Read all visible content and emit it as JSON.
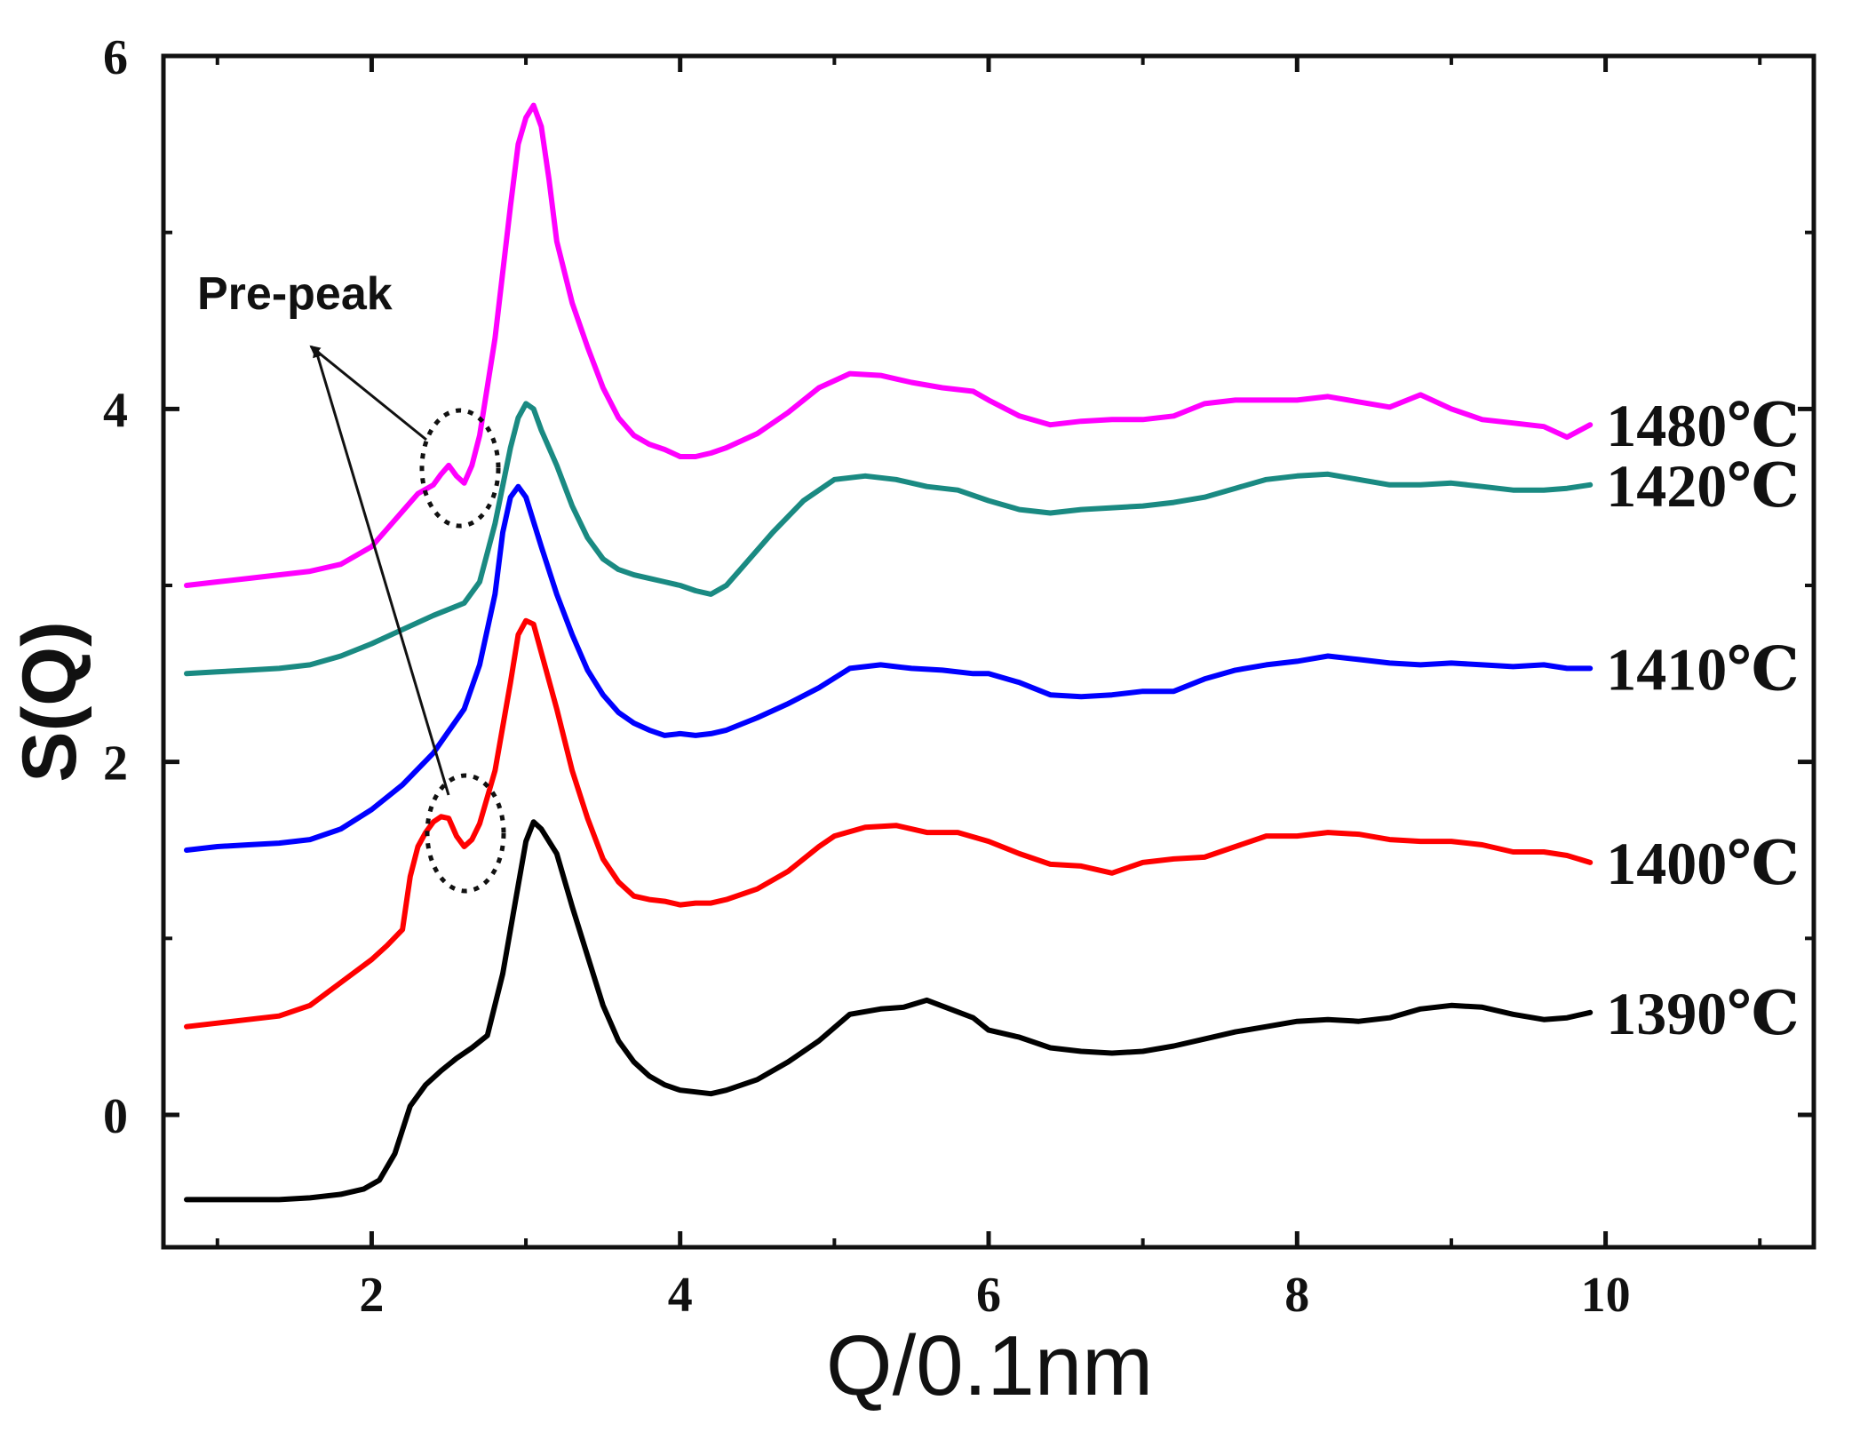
{
  "chart_data": {
    "type": "line",
    "title": "",
    "xlabel": "Q/0.1nm",
    "ylabel": "S(Q)",
    "xlim": [
      0.65,
      11.35
    ],
    "ylim": [
      -0.75,
      6.0
    ],
    "x_ticks": [
      2,
      4,
      6,
      8,
      10
    ],
    "x_minor_ticks": [
      1,
      3,
      5,
      7,
      9,
      11
    ],
    "y_ticks": [
      0,
      2,
      4,
      6
    ],
    "y_minor_ticks": [
      -1,
      1,
      3,
      5
    ],
    "x_tick_labels": [
      "2",
      "4",
      "6",
      "8",
      "10"
    ],
    "y_tick_labels": [
      "0",
      "2",
      "4",
      "6"
    ],
    "grid": false,
    "annotation": {
      "text": "Pre-peak",
      "targets": [
        {
          "series": "1480℃",
          "x": 2.5,
          "y": 3.6
        },
        {
          "series": "1400℃",
          "x": 2.5,
          "y": 1.7
        }
      ]
    },
    "series": [
      {
        "name": "1390℃",
        "label": "1390℃",
        "color": "#000000",
        "x": [
          0.8,
          1.0,
          1.2,
          1.4,
          1.6,
          1.8,
          1.95,
          2.05,
          2.15,
          2.25,
          2.35,
          2.45,
          2.55,
          2.65,
          2.75,
          2.85,
          2.95,
          3.0,
          3.05,
          3.1,
          3.2,
          3.3,
          3.4,
          3.5,
          3.6,
          3.7,
          3.8,
          3.9,
          4.0,
          4.1,
          4.2,
          4.3,
          4.5,
          4.7,
          4.9,
          5.1,
          5.3,
          5.45,
          5.6,
          5.75,
          5.9,
          6.0,
          6.2,
          6.4,
          6.6,
          6.8,
          7.0,
          7.2,
          7.4,
          7.6,
          7.8,
          8.0,
          8.2,
          8.4,
          8.6,
          8.8,
          9.0,
          9.2,
          9.4,
          9.6,
          9.75,
          9.9
        ],
        "y": [
          -0.48,
          -0.48,
          -0.48,
          -0.48,
          -0.47,
          -0.45,
          -0.42,
          -0.37,
          -0.22,
          0.05,
          0.17,
          0.25,
          0.32,
          0.38,
          0.45,
          0.8,
          1.3,
          1.55,
          1.66,
          1.62,
          1.48,
          1.18,
          0.9,
          0.62,
          0.42,
          0.3,
          0.22,
          0.17,
          0.14,
          0.13,
          0.12,
          0.14,
          0.2,
          0.3,
          0.42,
          0.57,
          0.6,
          0.61,
          0.65,
          0.6,
          0.55,
          0.48,
          0.44,
          0.38,
          0.36,
          0.35,
          0.36,
          0.39,
          0.43,
          0.47,
          0.5,
          0.53,
          0.54,
          0.53,
          0.55,
          0.6,
          0.62,
          0.61,
          0.57,
          0.54,
          0.55,
          0.58
        ]
      },
      {
        "name": "1400℃",
        "label": "1400℃",
        "color": "#ff0000",
        "x": [
          0.8,
          1.0,
          1.2,
          1.4,
          1.6,
          1.8,
          2.0,
          2.1,
          2.2,
          2.25,
          2.3,
          2.35,
          2.4,
          2.45,
          2.5,
          2.55,
          2.6,
          2.65,
          2.7,
          2.8,
          2.9,
          2.95,
          3.0,
          3.05,
          3.1,
          3.2,
          3.3,
          3.4,
          3.5,
          3.6,
          3.7,
          3.8,
          3.9,
          3.95,
          4.0,
          4.1,
          4.2,
          4.3,
          4.5,
          4.7,
          4.9,
          5.0,
          5.2,
          5.4,
          5.6,
          5.8,
          6.0,
          6.2,
          6.4,
          6.6,
          6.8,
          7.0,
          7.2,
          7.4,
          7.6,
          7.8,
          8.0,
          8.2,
          8.4,
          8.6,
          8.8,
          9.0,
          9.2,
          9.4,
          9.6,
          9.75,
          9.9
        ],
        "y": [
          0.5,
          0.52,
          0.54,
          0.56,
          0.62,
          0.75,
          0.88,
          0.96,
          1.05,
          1.35,
          1.52,
          1.6,
          1.66,
          1.69,
          1.68,
          1.58,
          1.52,
          1.56,
          1.65,
          1.95,
          2.45,
          2.72,
          2.8,
          2.78,
          2.62,
          2.3,
          1.95,
          1.68,
          1.45,
          1.32,
          1.24,
          1.22,
          1.21,
          1.2,
          1.19,
          1.2,
          1.2,
          1.22,
          1.28,
          1.38,
          1.52,
          1.58,
          1.63,
          1.64,
          1.6,
          1.6,
          1.55,
          1.48,
          1.42,
          1.41,
          1.37,
          1.43,
          1.45,
          1.46,
          1.52,
          1.58,
          1.58,
          1.6,
          1.59,
          1.56,
          1.55,
          1.55,
          1.53,
          1.49,
          1.49,
          1.47,
          1.43
        ]
      },
      {
        "name": "1410℃",
        "label": "1410℃",
        "color": "#0000ff",
        "x": [
          0.8,
          1.0,
          1.2,
          1.4,
          1.6,
          1.8,
          2.0,
          2.2,
          2.4,
          2.6,
          2.7,
          2.8,
          2.85,
          2.9,
          2.95,
          3.0,
          3.1,
          3.2,
          3.3,
          3.4,
          3.5,
          3.6,
          3.7,
          3.8,
          3.9,
          4.0,
          4.1,
          4.2,
          4.3,
          4.5,
          4.7,
          4.9,
          5.1,
          5.3,
          5.5,
          5.7,
          5.9,
          6.0,
          6.2,
          6.4,
          6.6,
          6.8,
          7.0,
          7.2,
          7.4,
          7.6,
          7.8,
          8.0,
          8.2,
          8.4,
          8.6,
          8.8,
          9.0,
          9.2,
          9.4,
          9.6,
          9.75,
          9.9
        ],
        "y": [
          1.5,
          1.52,
          1.53,
          1.54,
          1.56,
          1.62,
          1.73,
          1.87,
          2.05,
          2.3,
          2.55,
          2.95,
          3.3,
          3.5,
          3.56,
          3.5,
          3.22,
          2.95,
          2.72,
          2.52,
          2.38,
          2.28,
          2.22,
          2.18,
          2.15,
          2.16,
          2.15,
          2.16,
          2.18,
          2.25,
          2.33,
          2.42,
          2.53,
          2.55,
          2.53,
          2.52,
          2.5,
          2.5,
          2.45,
          2.38,
          2.37,
          2.38,
          2.4,
          2.4,
          2.47,
          2.52,
          2.55,
          2.57,
          2.6,
          2.58,
          2.56,
          2.55,
          2.56,
          2.55,
          2.54,
          2.55,
          2.53,
          2.53
        ]
      },
      {
        "name": "1420℃",
        "label": "1420℃",
        "color": "#1a8a82",
        "x": [
          0.8,
          1.0,
          1.2,
          1.4,
          1.6,
          1.8,
          2.0,
          2.2,
          2.4,
          2.6,
          2.7,
          2.8,
          2.9,
          2.95,
          3.0,
          3.05,
          3.1,
          3.2,
          3.3,
          3.4,
          3.5,
          3.6,
          3.7,
          3.8,
          3.9,
          4.0,
          4.1,
          4.2,
          4.3,
          4.4,
          4.6,
          4.8,
          5.0,
          5.2,
          5.4,
          5.6,
          5.8,
          6.0,
          6.2,
          6.4,
          6.6,
          6.8,
          7.0,
          7.2,
          7.4,
          7.6,
          7.8,
          8.0,
          8.2,
          8.4,
          8.6,
          8.8,
          9.0,
          9.2,
          9.4,
          9.6,
          9.75,
          9.9
        ],
        "y": [
          2.5,
          2.51,
          2.52,
          2.53,
          2.55,
          2.6,
          2.67,
          2.75,
          2.83,
          2.9,
          3.02,
          3.35,
          3.78,
          3.95,
          4.03,
          4.0,
          3.88,
          3.68,
          3.45,
          3.27,
          3.15,
          3.09,
          3.06,
          3.04,
          3.02,
          3.0,
          2.97,
          2.95,
          3.0,
          3.1,
          3.3,
          3.48,
          3.6,
          3.62,
          3.6,
          3.56,
          3.54,
          3.48,
          3.43,
          3.41,
          3.43,
          3.44,
          3.45,
          3.47,
          3.5,
          3.55,
          3.6,
          3.62,
          3.63,
          3.6,
          3.57,
          3.57,
          3.58,
          3.56,
          3.54,
          3.54,
          3.55,
          3.57
        ]
      },
      {
        "name": "1480℃",
        "label": "1480℃",
        "color": "#ff00ff",
        "x": [
          0.8,
          1.0,
          1.2,
          1.4,
          1.6,
          1.8,
          2.0,
          2.2,
          2.3,
          2.4,
          2.45,
          2.5,
          2.55,
          2.6,
          2.65,
          2.7,
          2.8,
          2.9,
          2.95,
          3.0,
          3.05,
          3.1,
          3.15,
          3.2,
          3.3,
          3.4,
          3.5,
          3.6,
          3.7,
          3.8,
          3.9,
          4.0,
          4.1,
          4.2,
          4.3,
          4.5,
          4.7,
          4.9,
          5.1,
          5.3,
          5.5,
          5.7,
          5.9,
          6.0,
          6.2,
          6.4,
          6.6,
          6.8,
          7.0,
          7.2,
          7.4,
          7.6,
          7.8,
          8.0,
          8.2,
          8.4,
          8.6,
          8.8,
          9.0,
          9.2,
          9.4,
          9.6,
          9.75,
          9.9
        ],
        "y": [
          3.0,
          3.02,
          3.04,
          3.06,
          3.08,
          3.12,
          3.22,
          3.42,
          3.52,
          3.57,
          3.63,
          3.68,
          3.62,
          3.58,
          3.68,
          3.85,
          4.4,
          5.15,
          5.5,
          5.65,
          5.72,
          5.6,
          5.3,
          4.95,
          4.6,
          4.35,
          4.12,
          3.95,
          3.85,
          3.8,
          3.77,
          3.73,
          3.73,
          3.75,
          3.78,
          3.86,
          3.98,
          4.12,
          4.2,
          4.19,
          4.15,
          4.12,
          4.1,
          4.05,
          3.96,
          3.91,
          3.93,
          3.94,
          3.94,
          3.96,
          4.03,
          4.05,
          4.05,
          4.05,
          4.07,
          4.04,
          4.01,
          4.08,
          4.0,
          3.94,
          3.92,
          3.9,
          3.84,
          3.91
        ]
      }
    ]
  }
}
